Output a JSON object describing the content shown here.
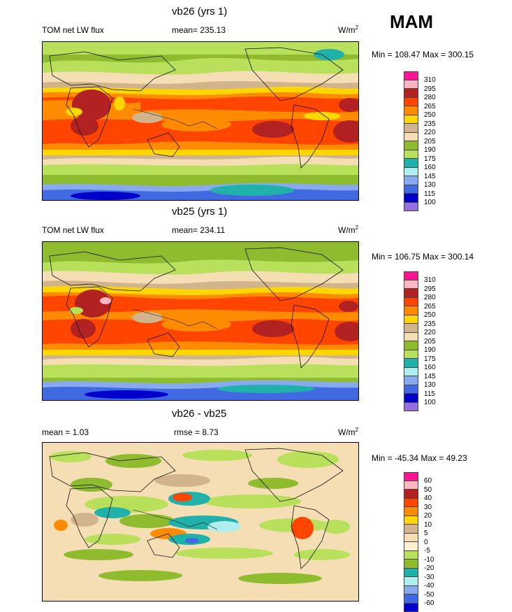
{
  "season": "MAM",
  "panels": [
    {
      "title": "vb26 (yrs 1)",
      "left_label": "TOM net LW flux",
      "mean_label": "mean= 235.13",
      "unit": "W/m",
      "unit_exp": "2",
      "minmax": "Min = 108.47 Max = 300.15",
      "levels": [
        "310",
        "295",
        "280",
        "265",
        "250",
        "235",
        "220",
        "205",
        "190",
        "175",
        "160",
        "145",
        "130",
        "115",
        "100"
      ]
    },
    {
      "title": "vb25 (yrs 1)",
      "left_label": "TOM net LW flux",
      "mean_label": "mean= 234.11",
      "unit": "W/m",
      "unit_exp": "2",
      "minmax": "Min = 106.75 Max = 300.14",
      "levels": [
        "310",
        "295",
        "280",
        "265",
        "250",
        "235",
        "220",
        "205",
        "190",
        "175",
        "160",
        "145",
        "130",
        "115",
        "100"
      ]
    },
    {
      "title": "vb26 - vb25",
      "left_label": "mean =   1.03",
      "mean_label": "rmse =   8.73",
      "unit": "W/m",
      "unit_exp": "2",
      "minmax": "Min = -45.34 Max =  49.23",
      "levels": [
        "60",
        "50",
        "40",
        "30",
        "20",
        "10",
        "5",
        "0",
        "-5",
        "-10",
        "-20",
        "-30",
        "-40",
        "-50",
        "-60"
      ]
    }
  ],
  "colors": {
    "field_colorbar": [
      "#ff1493",
      "#ffb6c1",
      "#b22222",
      "#ff4500",
      "#ff8c00",
      "#ffd700",
      "#d2b48c",
      "#f5deb3",
      "#8fbc2f",
      "#b8e05a",
      "#20b2aa",
      "#afeeee",
      "#87aaee",
      "#4169e1",
      "#0000cd",
      "#9370db"
    ],
    "diff_colorbar": [
      "#ff1493",
      "#ffb6c1",
      "#b22222",
      "#ff4500",
      "#ff8c00",
      "#ffd700",
      "#d2b48c",
      "#f5deb3",
      "#fff0d0",
      "#b8e05a",
      "#8fbc2f",
      "#20b2aa",
      "#afeeee",
      "#87aaee",
      "#4169e1",
      "#0000cd",
      "#9370db"
    ]
  },
  "chart_data": [
    {
      "type": "heatmap",
      "title": "vb26 (yrs 1)",
      "variable": "TOM net LW flux",
      "units": "W/m2",
      "mean": 235.13,
      "min": 108.47,
      "max": 300.15,
      "contour_levels": [
        100,
        115,
        130,
        145,
        160,
        175,
        190,
        205,
        220,
        235,
        250,
        265,
        280,
        295,
        310
      ]
    },
    {
      "type": "heatmap",
      "title": "vb25 (yrs 1)",
      "variable": "TOM net LW flux",
      "units": "W/m2",
      "mean": 234.11,
      "min": 106.75,
      "max": 300.14,
      "contour_levels": [
        100,
        115,
        130,
        145,
        160,
        175,
        190,
        205,
        220,
        235,
        250,
        265,
        280,
        295,
        310
      ]
    },
    {
      "type": "heatmap",
      "title": "vb26 - vb25",
      "units": "W/m2",
      "mean": 1.03,
      "rmse": 8.73,
      "min": -45.34,
      "max": 49.23,
      "contour_levels": [
        -60,
        -50,
        -40,
        -30,
        -20,
        -10,
        -5,
        0,
        5,
        10,
        20,
        30,
        40,
        50,
        60
      ]
    }
  ]
}
